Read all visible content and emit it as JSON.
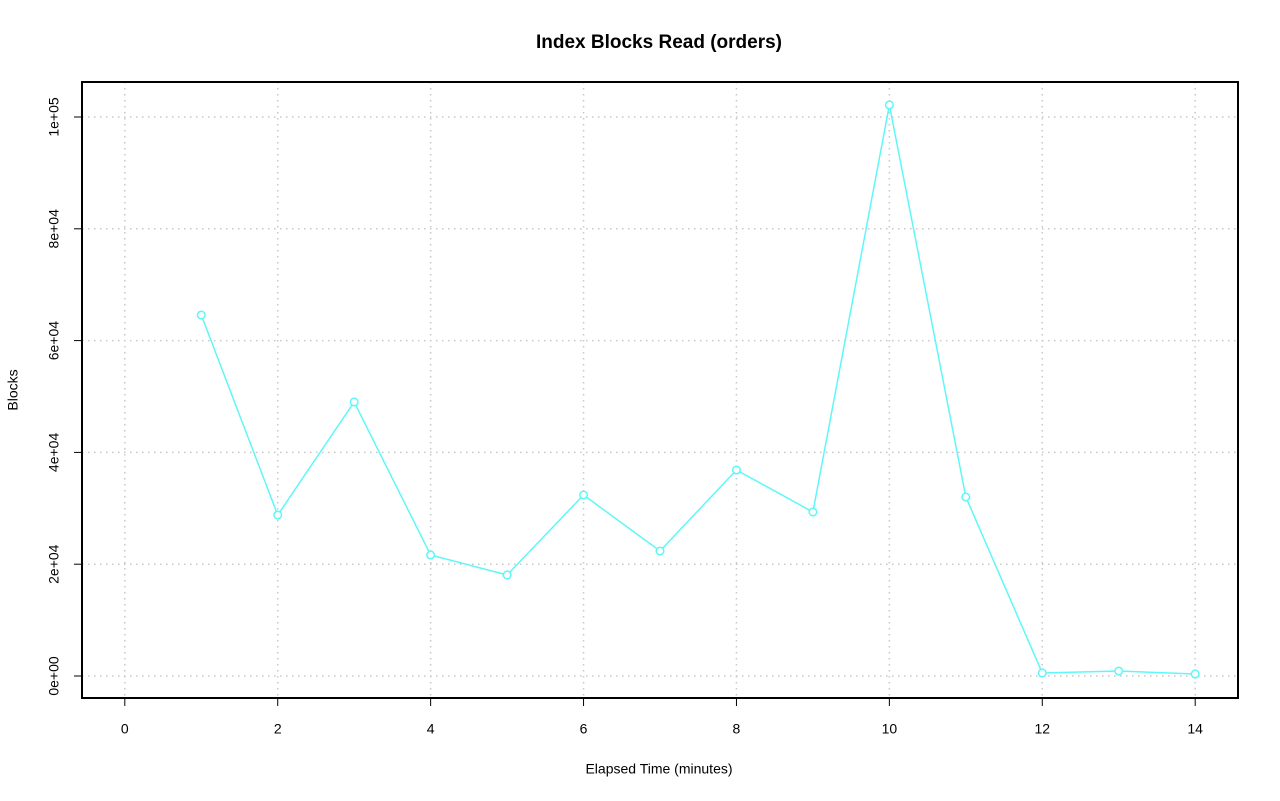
{
  "chart_data": {
    "type": "line",
    "title": "Index Blocks Read (orders)",
    "x_label": "Elapsed Time (minutes)",
    "y_label": "Blocks",
    "x": [
      1,
      2,
      3,
      4,
      5,
      6,
      7,
      8,
      9,
      10,
      11,
      12,
      13,
      14
    ],
    "series": [
      {
        "name": "orders",
        "color": "#5ff7f7",
        "values": [
          64580,
          28800,
          49020,
          21650,
          18070,
          32380,
          22360,
          36850,
          29340,
          102150,
          32020,
          540,
          890,
          360
        ]
      }
    ],
    "xlim": [
      -0.56,
      14.56
    ],
    "xticks": [
      0,
      2,
      4,
      6,
      8,
      10,
      12,
      14
    ],
    "ylim": [
      -3936,
      106261
    ],
    "yticks": [
      {
        "value": 0,
        "label": "0e+00"
      },
      {
        "value": 20000,
        "label": "2e+04"
      },
      {
        "value": 40000,
        "label": "4e+04"
      },
      {
        "value": 60000,
        "label": "6e+04"
      },
      {
        "value": 80000,
        "label": "8e+04"
      },
      {
        "value": 100000,
        "label": "1e+05"
      }
    ],
    "grid": true,
    "markers": true
  }
}
